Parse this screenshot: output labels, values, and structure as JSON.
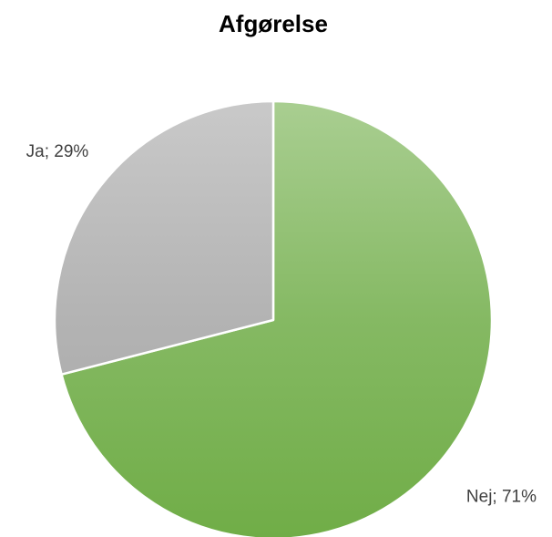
{
  "chart_data": {
    "type": "pie",
    "title": "Afgørelse",
    "categories": [
      "Nej",
      "Ja"
    ],
    "values": [
      71,
      29
    ],
    "value_labels": [
      "Nej; 71%",
      "Ja; 29%"
    ],
    "colors": [
      "#70ad47",
      "#a5a5a5"
    ]
  }
}
